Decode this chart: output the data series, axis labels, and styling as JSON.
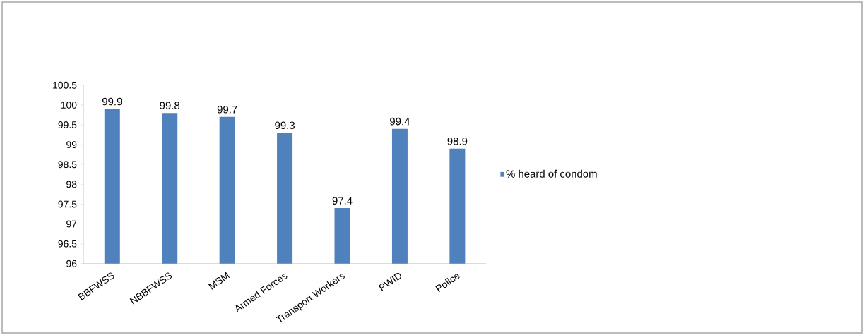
{
  "chart_data": {
    "type": "bar",
    "categories": [
      "BBFWSS",
      "NBBFWSS",
      "MSM",
      "Armed Forces",
      "Transport Workers",
      "PWID",
      "Police"
    ],
    "series": [
      {
        "name": "% heard of condom",
        "color": "#4f81bd",
        "values": [
          99.9,
          99.8,
          99.7,
          99.3,
          97.4,
          99.4,
          98.9
        ]
      }
    ],
    "ylim": [
      96,
      100.5
    ],
    "yticks": [
      96,
      96.5,
      97,
      97.5,
      98,
      98.5,
      99,
      99.5,
      100,
      100.5
    ],
    "data_labels": true,
    "legend": "right",
    "grid": false
  }
}
